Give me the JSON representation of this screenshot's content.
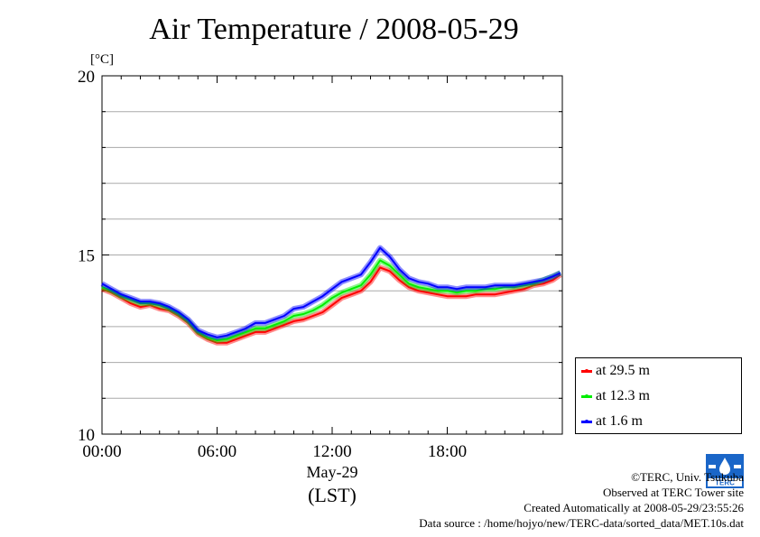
{
  "chart_data": {
    "type": "line",
    "title": "Air Temperature / 2008-05-29",
    "unit_label": "[°C]",
    "xlabel": "May-29",
    "xlabel2": "(LST)",
    "x_ticks": [
      "00:00",
      "06:00",
      "12:00",
      "18:00"
    ],
    "x_unit": "hours (LST)",
    "xlim": [
      0,
      23.9
    ],
    "ylim": [
      10,
      20
    ],
    "y_ticks": [
      10,
      15,
      20
    ],
    "grid": true,
    "legend_position": "lower-right (outside plot)",
    "series": [
      {
        "name": "at 29.5 m",
        "color": "#ff0000",
        "points": [
          [
            0,
            14.05
          ],
          [
            0.5,
            13.95
          ],
          [
            1,
            13.8
          ],
          [
            1.5,
            13.65
          ],
          [
            2,
            13.55
          ],
          [
            2.5,
            13.6
          ],
          [
            3,
            13.5
          ],
          [
            3.5,
            13.45
          ],
          [
            4,
            13.3
          ],
          [
            4.5,
            13.1
          ],
          [
            5,
            12.8
          ],
          [
            5.5,
            12.65
          ],
          [
            6,
            12.55
          ],
          [
            6.5,
            12.55
          ],
          [
            7,
            12.65
          ],
          [
            7.5,
            12.75
          ],
          [
            8,
            12.85
          ],
          [
            8.5,
            12.85
          ],
          [
            9,
            12.95
          ],
          [
            9.5,
            13.05
          ],
          [
            10,
            13.15
          ],
          [
            10.5,
            13.2
          ],
          [
            11,
            13.3
          ],
          [
            11.5,
            13.4
          ],
          [
            12,
            13.6
          ],
          [
            12.5,
            13.8
          ],
          [
            13,
            13.9
          ],
          [
            13.5,
            14.0
          ],
          [
            14,
            14.25
          ],
          [
            14.5,
            14.65
          ],
          [
            15,
            14.55
          ],
          [
            15.5,
            14.3
          ],
          [
            16,
            14.1
          ],
          [
            16.5,
            14.0
          ],
          [
            17,
            13.95
          ],
          [
            17.5,
            13.9
          ],
          [
            18,
            13.85
          ],
          [
            18.5,
            13.85
          ],
          [
            19,
            13.85
          ],
          [
            19.5,
            13.9
          ],
          [
            20,
            13.9
          ],
          [
            20.5,
            13.9
          ],
          [
            21,
            13.95
          ],
          [
            21.5,
            14.0
          ],
          [
            22,
            14.05
          ],
          [
            22.5,
            14.15
          ],
          [
            23,
            14.2
          ],
          [
            23.5,
            14.3
          ],
          [
            23.9,
            14.45
          ]
        ]
      },
      {
        "name": "at 12.3 m",
        "color": "#00ee00",
        "points": [
          [
            0,
            14.1
          ],
          [
            0.5,
            14.0
          ],
          [
            1,
            13.85
          ],
          [
            1.5,
            13.75
          ],
          [
            2,
            13.65
          ],
          [
            2.5,
            13.65
          ],
          [
            3,
            13.6
          ],
          [
            3.5,
            13.5
          ],
          [
            4,
            13.35
          ],
          [
            4.5,
            13.15
          ],
          [
            5,
            12.85
          ],
          [
            5.5,
            12.7
          ],
          [
            6,
            12.62
          ],
          [
            6.5,
            12.65
          ],
          [
            7,
            12.75
          ],
          [
            7.5,
            12.85
          ],
          [
            8,
            12.95
          ],
          [
            8.5,
            12.95
          ],
          [
            9,
            13.05
          ],
          [
            9.5,
            13.15
          ],
          [
            10,
            13.3
          ],
          [
            10.5,
            13.35
          ],
          [
            11,
            13.45
          ],
          [
            11.5,
            13.6
          ],
          [
            12,
            13.8
          ],
          [
            12.5,
            13.95
          ],
          [
            13,
            14.05
          ],
          [
            13.5,
            14.15
          ],
          [
            14,
            14.45
          ],
          [
            14.5,
            14.85
          ],
          [
            15,
            14.7
          ],
          [
            15.5,
            14.45
          ],
          [
            16,
            14.2
          ],
          [
            16.5,
            14.1
          ],
          [
            17,
            14.05
          ],
          [
            17.5,
            14.0
          ],
          [
            18,
            14.0
          ],
          [
            18.5,
            13.95
          ],
          [
            19,
            14.0
          ],
          [
            19.5,
            14.0
          ],
          [
            20,
            14.05
          ],
          [
            20.5,
            14.05
          ],
          [
            21,
            14.1
          ],
          [
            21.5,
            14.1
          ],
          [
            22,
            14.15
          ],
          [
            22.5,
            14.2
          ],
          [
            23,
            14.3
          ],
          [
            23.5,
            14.4
          ],
          [
            23.9,
            14.5
          ]
        ]
      },
      {
        "name": "at 1.6 m",
        "color": "#0000ff",
        "points": [
          [
            0,
            14.2
          ],
          [
            0.5,
            14.05
          ],
          [
            1,
            13.9
          ],
          [
            1.5,
            13.8
          ],
          [
            2,
            13.7
          ],
          [
            2.5,
            13.7
          ],
          [
            3,
            13.65
          ],
          [
            3.5,
            13.55
          ],
          [
            4,
            13.4
          ],
          [
            4.5,
            13.2
          ],
          [
            5,
            12.9
          ],
          [
            5.5,
            12.78
          ],
          [
            6,
            12.7
          ],
          [
            6.5,
            12.75
          ],
          [
            7,
            12.85
          ],
          [
            7.5,
            12.95
          ],
          [
            8,
            13.1
          ],
          [
            8.5,
            13.1
          ],
          [
            9,
            13.2
          ],
          [
            9.5,
            13.3
          ],
          [
            10,
            13.5
          ],
          [
            10.5,
            13.55
          ],
          [
            11,
            13.7
          ],
          [
            11.5,
            13.85
          ],
          [
            12,
            14.05
          ],
          [
            12.5,
            14.25
          ],
          [
            13,
            14.35
          ],
          [
            13.5,
            14.45
          ],
          [
            14,
            14.8
          ],
          [
            14.5,
            15.2
          ],
          [
            15,
            14.95
          ],
          [
            15.5,
            14.6
          ],
          [
            16,
            14.35
          ],
          [
            16.5,
            14.25
          ],
          [
            17,
            14.2
          ],
          [
            17.5,
            14.1
          ],
          [
            18,
            14.1
          ],
          [
            18.5,
            14.05
          ],
          [
            19,
            14.1
          ],
          [
            19.5,
            14.1
          ],
          [
            20,
            14.1
          ],
          [
            20.5,
            14.15
          ],
          [
            21,
            14.15
          ],
          [
            21.5,
            14.15
          ],
          [
            22,
            14.2
          ],
          [
            22.5,
            14.25
          ],
          [
            23,
            14.3
          ],
          [
            23.5,
            14.4
          ],
          [
            23.9,
            14.5
          ]
        ]
      }
    ]
  },
  "credits": {
    "copyright": "©TERC, Univ. Tsukuba",
    "observed": "Observed at TERC Tower site",
    "created": "Created Automatically at 2008-05-29/23:55:26",
    "source": "Data source : /home/hojyo/new/TERC-data/sorted_data/MET.10s.dat",
    "logo_text": "TERC"
  }
}
